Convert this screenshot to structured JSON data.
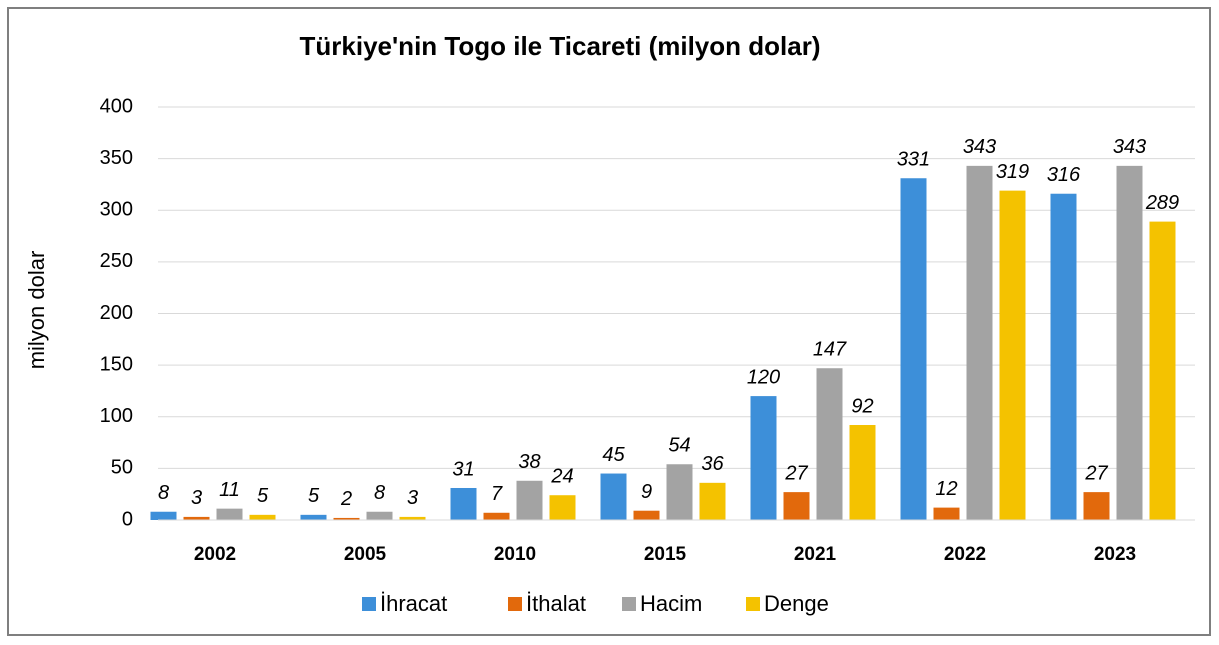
{
  "chart_data": {
    "type": "bar",
    "title": "Türkiye'nin Togo ile Ticareti (milyon dolar)",
    "y_label": "milyon dolar",
    "categories": [
      "2002",
      "2005",
      "2010",
      "2015",
      "2021",
      "2022",
      "2023"
    ],
    "series": [
      {
        "name": "İhracat",
        "color": "#3d8fd9",
        "values": [
          8,
          5,
          31,
          45,
          120,
          331,
          316
        ]
      },
      {
        "name": "İthalat",
        "color": "#e2690c",
        "values": [
          3,
          2,
          7,
          9,
          27,
          12,
          27
        ]
      },
      {
        "name": "Hacim",
        "color": "#a3a3a3",
        "values": [
          11,
          8,
          38,
          54,
          147,
          343,
          343
        ]
      },
      {
        "name": "Denge",
        "color": "#f4c200",
        "values": [
          5,
          3,
          24,
          36,
          92,
          319,
          289
        ]
      }
    ],
    "ylim": [
      0,
      400
    ],
    "yticks": [
      0,
      50,
      100,
      150,
      200,
      250,
      300,
      350,
      400
    ],
    "grid": true,
    "legend": "bottom"
  }
}
